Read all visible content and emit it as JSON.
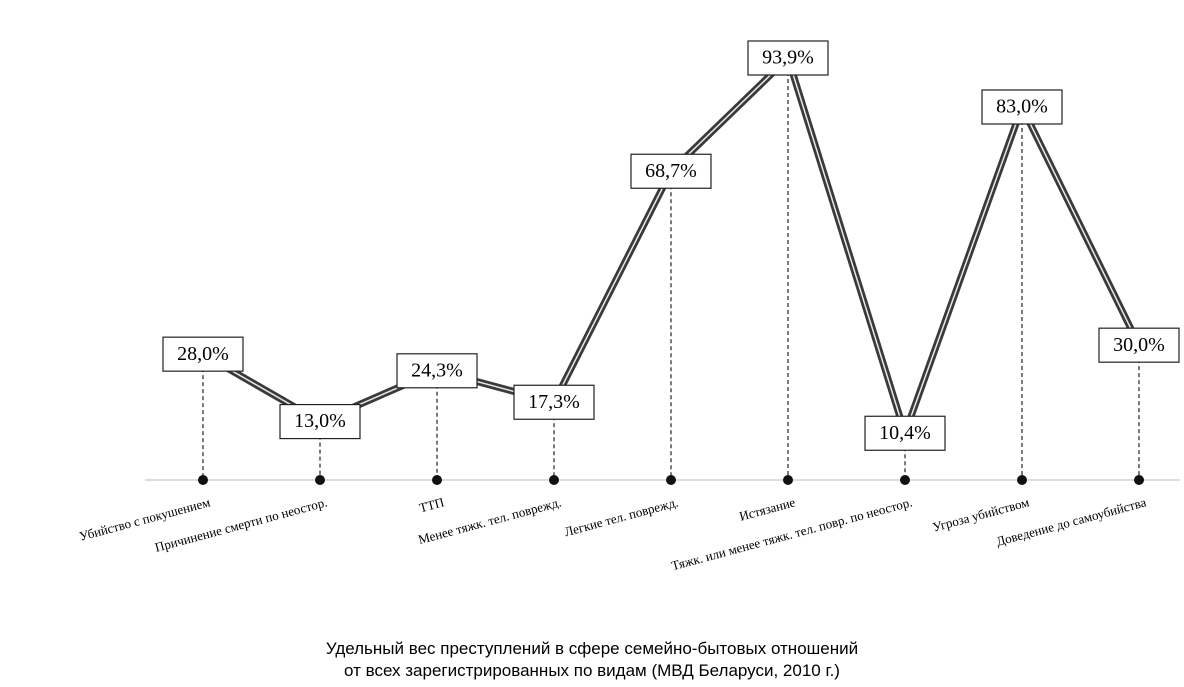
{
  "chart_data": {
    "type": "line",
    "title": [
      "Удельный вес преступлений в сфере семейно-бытовых отношений",
      "от всех зарегистрированных по видам (МВД Беларуси, 2010 г.)"
    ],
    "categories": [
      "Убийство с покушением",
      "Причинение смерти по неостор.",
      "ТТП",
      "Менее тяжк. тел. поврежд.",
      "Легкие тел. поврежд.",
      "Истязание",
      "Тяжк. или менее тяжк. тел. повр. по неостор.",
      "Угроза убийством",
      "Доведение до самоубийства"
    ],
    "values": [
      28.0,
      13.0,
      24.3,
      17.3,
      68.7,
      93.9,
      10.4,
      83.0,
      30.0
    ],
    "value_labels": [
      "28,0%",
      "13,0%",
      "24,3%",
      "17,3%",
      "68,7%",
      "93,9%",
      "10,4%",
      "83,0%",
      "30,0%"
    ],
    "color": "#3a3a3a"
  }
}
